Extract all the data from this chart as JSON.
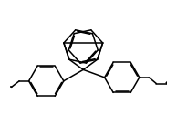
{
  "bg_color": "#ffffff",
  "line_color": "#000000",
  "line_width": 1.1,
  "figsize": [
    1.94,
    1.26
  ],
  "dpi": 100
}
